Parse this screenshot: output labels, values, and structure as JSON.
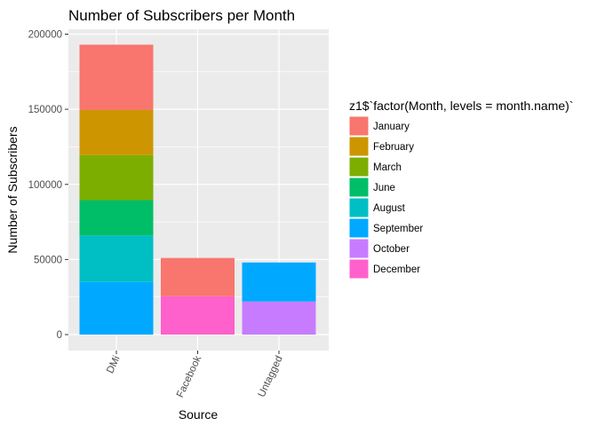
{
  "chart_data": {
    "type": "bar",
    "stacked": true,
    "title": "Number of Subscribers per Month",
    "xlabel": "Source",
    "ylabel": "Number of Subscribers",
    "categories": [
      "DMi",
      "Facebook",
      "Untagged"
    ],
    "ylim": [
      -10000,
      205000
    ],
    "yticks": [
      0,
      50000,
      100000,
      150000,
      200000
    ],
    "ytick_labels": [
      "0",
      "50000",
      "100000",
      "150000",
      "200000"
    ],
    "grid": true,
    "legend": {
      "title": "z1$`factor(Month, levels = month.name)`",
      "position": "right"
    },
    "series": [
      {
        "name": "January",
        "color": "#F8766D",
        "values": [
          43500,
          25500,
          0
        ]
      },
      {
        "name": "February",
        "color": "#CD9600",
        "values": [
          30000,
          0,
          0
        ]
      },
      {
        "name": "March",
        "color": "#7CAE00",
        "values": [
          30000,
          0,
          0
        ]
      },
      {
        "name": "June",
        "color": "#00BE67",
        "values": [
          23500,
          0,
          0
        ]
      },
      {
        "name": "August",
        "color": "#00BFC4",
        "values": [
          31000,
          0,
          0
        ]
      },
      {
        "name": "September",
        "color": "#00A9FF",
        "values": [
          35000,
          0,
          26000
        ]
      },
      {
        "name": "October",
        "color": "#C77CFF",
        "values": [
          0,
          0,
          22000
        ]
      },
      {
        "name": "December",
        "color": "#FF61CC",
        "values": [
          0,
          25500,
          0
        ]
      }
    ]
  }
}
